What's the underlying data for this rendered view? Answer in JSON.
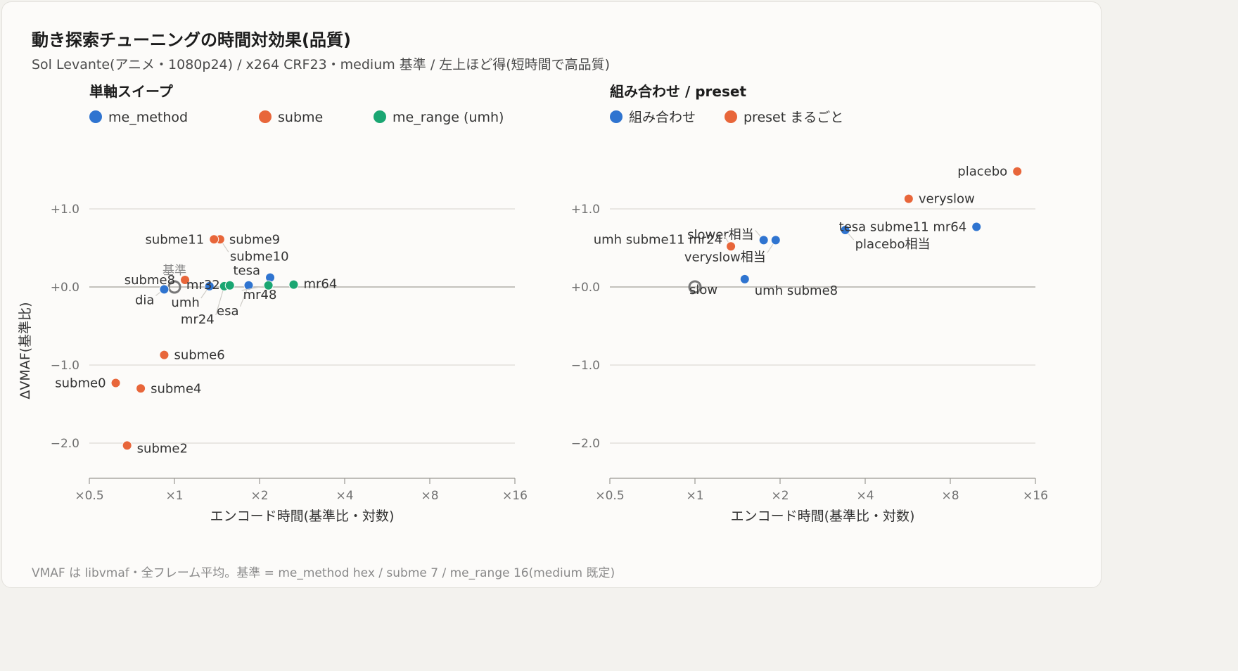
{
  "title": "動き探索チューニングの時間対効果(品質)",
  "subtitle": "Sol Levante(アニメ・1080p24) / x264 CRF23・medium 基準 / 左上ほど得(短時間で高品質)",
  "footnote": "VMAF は libvmaf・全フレーム平均。基準 = me_method hex / subme 7 / me_range 16(medium 既定)",
  "colors": {
    "blue": "#2f74d0",
    "orange": "#e8663a",
    "green": "#1aa672",
    "grid": "#dddbd6",
    "zero": "#c4c2bd",
    "text": "#333333",
    "axis_text": "#707070"
  },
  "chart_data": [
    {
      "type": "scatter",
      "title": "単軸スイープ",
      "xlabel": "エンコード時間(基準比・対数)",
      "ylabel": "ΔVMAF(基準比)",
      "x_scale": "log2",
      "xlim": [
        0.5,
        16
      ],
      "ylim": [
        -2.45,
        1.0
      ],
      "x_ticks": [
        0.5,
        1,
        2,
        4,
        8,
        16
      ],
      "x_tick_labels": [
        "×0.5",
        "×1",
        "×2",
        "×4",
        "×8",
        "×16"
      ],
      "y_ticks": [
        1.0,
        0.0,
        -1.0,
        -2.0
      ],
      "y_tick_labels": [
        "+1.0",
        "+0.0",
        "−1.0",
        "−2.0"
      ],
      "legend": "top-left",
      "reference": {
        "label": "基準",
        "x": 1.0,
        "y": 0.0
      },
      "series": [
        {
          "name": "me_method",
          "color": "#2f74d0",
          "points": [
            {
              "label": "dia",
              "x": 0.92,
              "y": -0.03
            },
            {
              "label": "umh",
              "x": 1.33,
              "y": 0.01
            },
            {
              "label": "esa",
              "x": 1.83,
              "y": 0.02
            },
            {
              "label": "tesa",
              "x": 2.18,
              "y": 0.12
            }
          ]
        },
        {
          "name": "subme",
          "color": "#e8663a",
          "points": [
            {
              "label": "subme0",
              "x": 0.62,
              "y": -1.23
            },
            {
              "label": "subme2",
              "x": 0.68,
              "y": -2.03
            },
            {
              "label": "subme4",
              "x": 0.76,
              "y": -1.3
            },
            {
              "label": "subme6",
              "x": 0.92,
              "y": -0.87
            },
            {
              "label": "subme8",
              "x": 1.09,
              "y": 0.09
            },
            {
              "label": "subme9",
              "x": 1.45,
              "y": 0.61
            },
            {
              "label": "subme10",
              "x": 1.45,
              "y": 0.61
            },
            {
              "label": "subme11",
              "x": 1.38,
              "y": 0.61
            }
          ]
        },
        {
          "name": "me_range (umh)",
          "color": "#1aa672",
          "points": [
            {
              "label": "mr24",
              "x": 1.5,
              "y": 0.01
            },
            {
              "label": "mr32",
              "x": 1.57,
              "y": 0.02
            },
            {
              "label": "mr48",
              "x": 2.15,
              "y": 0.02
            },
            {
              "label": "mr64",
              "x": 2.64,
              "y": 0.03
            }
          ]
        }
      ]
    },
    {
      "type": "scatter",
      "title": "組み合わせ / preset",
      "xlabel": "エンコード時間(基準比・対数)",
      "ylabel": "",
      "x_scale": "log2",
      "xlim": [
        0.5,
        16
      ],
      "ylim": [
        -2.45,
        1.0
      ],
      "x_ticks": [
        0.5,
        1,
        2,
        4,
        8,
        16
      ],
      "x_tick_labels": [
        "×0.5",
        "×1",
        "×2",
        "×4",
        "×8",
        "×16"
      ],
      "y_ticks": [
        1.0,
        0.0,
        -1.0,
        -2.0
      ],
      "y_tick_labels": [
        "+1.0",
        "+0.0",
        "−1.0",
        "−2.0"
      ],
      "legend": "top-left",
      "reference": {
        "label": "slow",
        "x": 1.0,
        "y": 0.0
      },
      "series": [
        {
          "name": "組み合わせ",
          "color": "#2f74d0",
          "points": [
            {
              "label": "umh subme8",
              "x": 1.5,
              "y": 0.1
            },
            {
              "label": "slower相当",
              "x": 1.75,
              "y": 0.6
            },
            {
              "label": "veryslow相当",
              "x": 1.93,
              "y": 0.6
            },
            {
              "label": "placebo相当",
              "x": 3.4,
              "y": 0.73
            },
            {
              "label": "tesa subme11 mr64",
              "x": 9.9,
              "y": 0.77
            }
          ]
        },
        {
          "name": "preset まるごと",
          "color": "#e8663a",
          "points": [
            {
              "label": "umh subme11 mr24",
              "x": 1.34,
              "y": 0.52
            },
            {
              "label": "veryslow",
              "x": 5.7,
              "y": 1.13
            },
            {
              "label": "placebo",
              "x": 13.8,
              "y": 1.48
            }
          ]
        }
      ]
    }
  ]
}
